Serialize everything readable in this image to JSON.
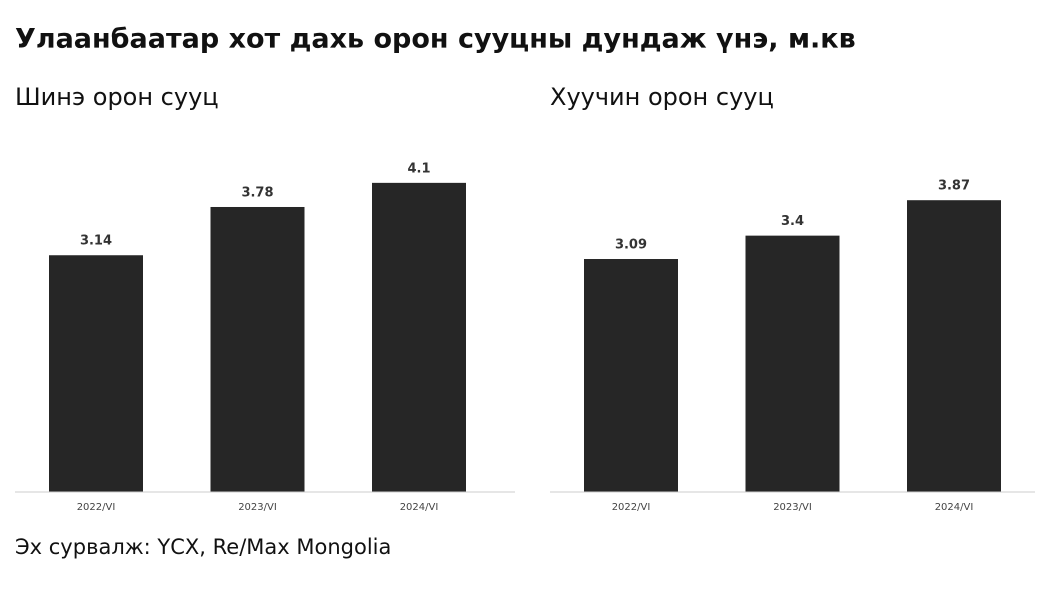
{
  "title": "Улаанбаатар хот дахь орон сууцны дундаж үнэ, м.кв",
  "source": "Эх сурвалж: ҮСХ, Re/Max Mongolia",
  "chart_data": [
    {
      "type": "bar",
      "title": "Шинэ орон сууц",
      "categories": [
        "2022/VI",
        "2023/VI",
        "2024/VI"
      ],
      "values": [
        3.14,
        3.78,
        4.1
      ],
      "color": "#262626",
      "ylim": [
        0,
        5
      ]
    },
    {
      "type": "bar",
      "title": "Хуучин орон сууц",
      "categories": [
        "2022/VI",
        "2023/VI",
        "2024/VI"
      ],
      "values": [
        3.09,
        3.4,
        3.87
      ],
      "color": "#262626",
      "ylim": [
        0,
        5
      ]
    }
  ]
}
